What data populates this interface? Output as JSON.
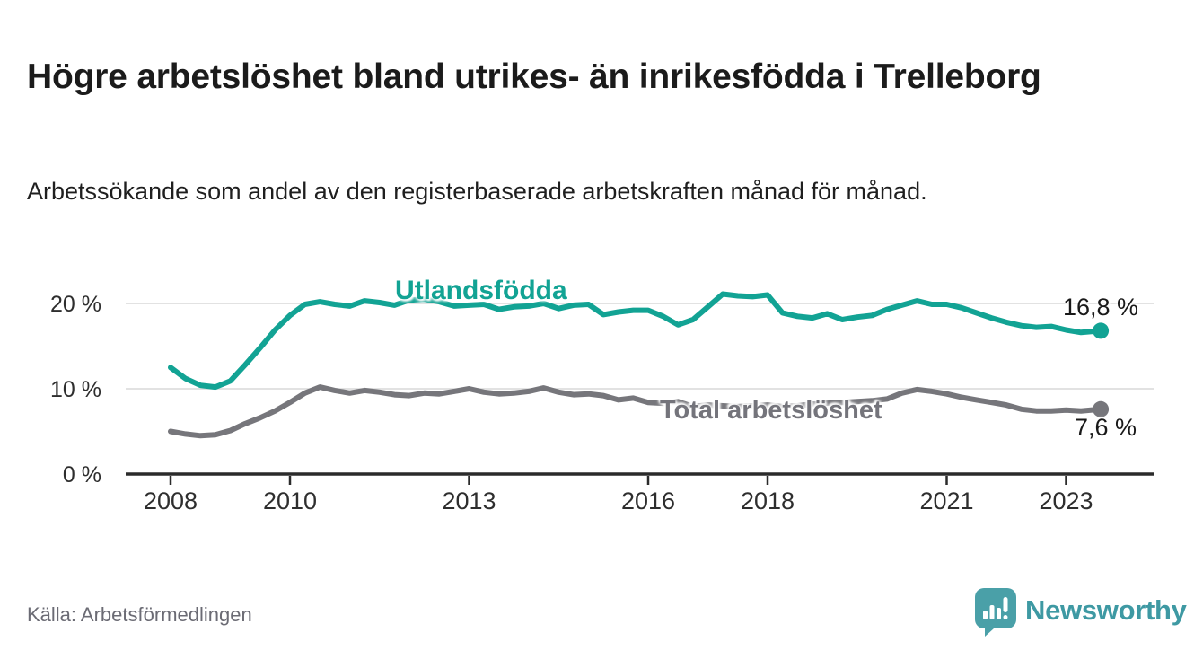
{
  "header": {
    "title": "Högre arbetslöshet bland utrikes- än inrikesfödda i Trelleborg",
    "subtitle": "Arbetssökande som andel av den registerbaserade arbetskraften månad för månad."
  },
  "chart_data": {
    "type": "line",
    "title": "Högre arbetslöshet bland utrikes- än inrikesfödda i Trelleborg",
    "xlabel": "",
    "ylabel": "Arbetssökande som andel av den registerbaserade arbetskraften",
    "unit": "%",
    "grid": "horizontal",
    "legend_position": "inline-labels",
    "xlim": [
      2007.25,
      2024.5
    ],
    "ylim": [
      0,
      24
    ],
    "x_ticks": [
      2008,
      2010,
      2013,
      2016,
      2018,
      2021,
      2023
    ],
    "y_ticks": [
      {
        "value": 0,
        "label": "0 %"
      },
      {
        "value": 10,
        "label": "10 %"
      },
      {
        "value": 20,
        "label": "20 %"
      }
    ],
    "x": [
      2008.0,
      2008.25,
      2008.5,
      2008.75,
      2009.0,
      2009.25,
      2009.5,
      2009.75,
      2010.0,
      2010.25,
      2010.5,
      2010.75,
      2011.0,
      2011.25,
      2011.5,
      2011.75,
      2012.0,
      2012.25,
      2012.5,
      2012.75,
      2013.0,
      2013.25,
      2013.5,
      2013.75,
      2014.0,
      2014.25,
      2014.5,
      2014.75,
      2015.0,
      2015.25,
      2015.5,
      2015.75,
      2016.0,
      2016.25,
      2016.5,
      2016.75,
      2017.0,
      2017.25,
      2017.5,
      2017.75,
      2018.0,
      2018.25,
      2018.5,
      2018.75,
      2019.0,
      2019.25,
      2019.5,
      2019.75,
      2020.0,
      2020.25,
      2020.5,
      2020.75,
      2021.0,
      2021.25,
      2021.5,
      2021.75,
      2022.0,
      2022.25,
      2022.5,
      2022.75,
      2023.0,
      2023.25,
      2023.58
    ],
    "series": [
      {
        "name": "Utlandsfödda",
        "color": "#12a394",
        "end_label": "16,8 %",
        "end_value": 16.8,
        "values": [
          12.5,
          11.2,
          10.4,
          10.2,
          10.9,
          12.8,
          14.8,
          16.9,
          18.6,
          19.9,
          20.2,
          19.9,
          19.7,
          20.3,
          20.1,
          19.8,
          20.4,
          20.5,
          20.2,
          19.7,
          19.8,
          19.9,
          19.3,
          19.6,
          19.7,
          20.0,
          19.4,
          19.8,
          19.9,
          18.7,
          19.0,
          19.2,
          19.2,
          18.5,
          17.5,
          18.1,
          19.6,
          21.1,
          20.9,
          20.8,
          21.0,
          18.9,
          18.5,
          18.3,
          18.8,
          18.1,
          18.4,
          18.6,
          19.3,
          19.8,
          20.3,
          19.9,
          19.9,
          19.5,
          18.9,
          18.3,
          17.8,
          17.4,
          17.2,
          17.3,
          16.9,
          16.6,
          16.8
        ]
      },
      {
        "name": "Total arbetslöshet",
        "color": "#76767b",
        "end_label": "7,6 %",
        "end_value": 7.6,
        "values": [
          5.0,
          4.7,
          4.5,
          4.6,
          5.1,
          5.9,
          6.6,
          7.4,
          8.4,
          9.5,
          10.2,
          9.8,
          9.5,
          9.8,
          9.6,
          9.3,
          9.2,
          9.5,
          9.4,
          9.7,
          10.0,
          9.6,
          9.4,
          9.5,
          9.7,
          10.1,
          9.6,
          9.3,
          9.4,
          9.2,
          8.7,
          8.9,
          8.4,
          8.3,
          8.5,
          7.9,
          8.1,
          8.0,
          7.9,
          8.0,
          8.1,
          7.9,
          8.0,
          8.2,
          8.3,
          8.4,
          8.5,
          8.6,
          8.8,
          9.5,
          9.9,
          9.7,
          9.4,
          9.0,
          8.7,
          8.4,
          8.1,
          7.6,
          7.4,
          7.4,
          7.5,
          7.4,
          7.6
        ]
      }
    ]
  },
  "footer": {
    "source": "Källa: Arbetsförmedlingen",
    "brand_name": "Newsworthy",
    "brand_color": "#3e99a3",
    "brand_icon_color": "#4aa0a8"
  }
}
